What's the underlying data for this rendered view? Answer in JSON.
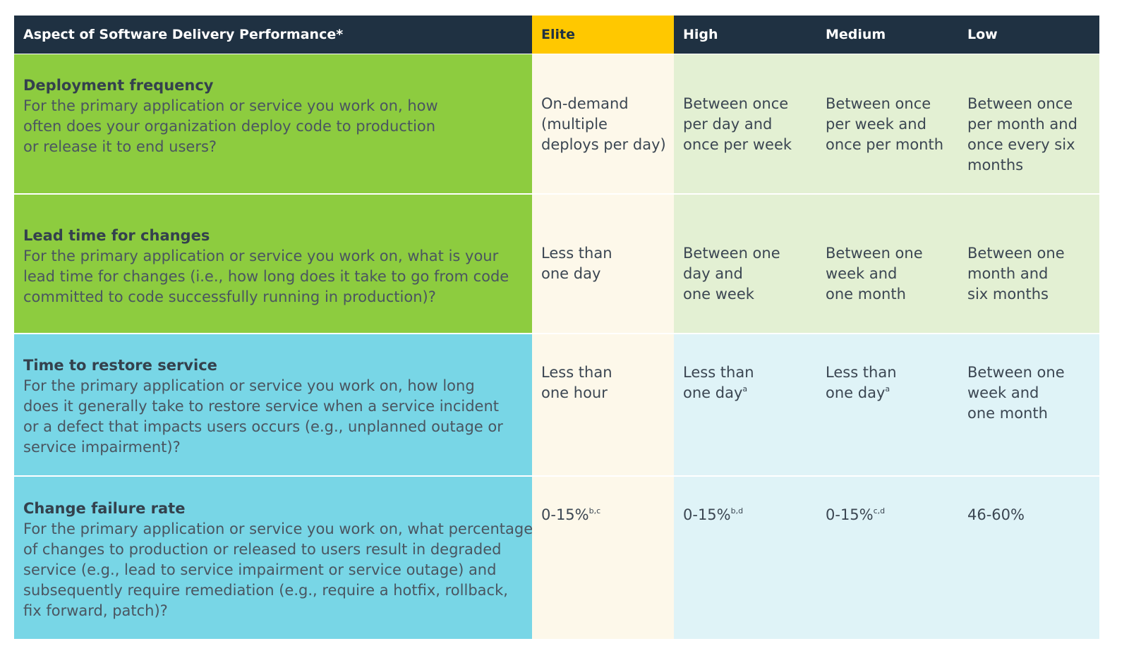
{
  "table": {
    "header": [
      "Aspect of Software Delivery Performance*",
      "Elite",
      "High",
      "Medium",
      "Low"
    ],
    "rows": [
      {
        "title": "Deployment frequency",
        "description": [
          "For the primary application or service you work on, how",
          "often does your organization deploy code to production",
          "or release it to end users?"
        ],
        "cells": [
          {
            "lines": [
              "On-demand",
              "(multiple",
              "deploys per day)"
            ]
          },
          {
            "lines": [
              "Between once",
              "per day and",
              "once per week"
            ]
          },
          {
            "lines": [
              "Between once",
              "per week and",
              "once per month"
            ]
          },
          {
            "lines": [
              "Between once",
              "per month and",
              "once every six",
              "months"
            ]
          }
        ]
      },
      {
        "title": "Lead time for changes",
        "description": [
          "For the primary application or service you work on, what is your",
          "lead time for changes (i.e., how long does it take to go from code",
          "committed to code successfully running in production)?"
        ],
        "cells": [
          {
            "lines": [
              "Less than",
              "one day"
            ]
          },
          {
            "lines": [
              "Between one",
              "day and",
              "one week"
            ]
          },
          {
            "lines": [
              "Between one",
              "week and",
              "one month"
            ]
          },
          {
            "lines": [
              "Between one",
              "month and",
              "six months"
            ]
          }
        ]
      },
      {
        "title": "Time to restore service",
        "description": [
          "For the primary application or service you work on, how long",
          "does it generally take to restore service when a service incident",
          "or a defect that impacts users occurs (e.g., unplanned outage or",
          "service impairment)?"
        ],
        "cells": [
          {
            "lines": [
              "Less than",
              "one hour"
            ]
          },
          {
            "lines": [
              "Less than",
              "one day"
            ],
            "sup": "a"
          },
          {
            "lines": [
              "Less than",
              "one day"
            ],
            "sup": "a"
          },
          {
            "lines": [
              "Between one",
              "week and",
              "one month"
            ]
          }
        ]
      },
      {
        "title": "Change failure rate",
        "description": [
          "For the primary application or service you work on, what percentage",
          "of changes to production or released to users result in degraded",
          "service (e.g., lead to service impairment or service outage) and",
          "subsequently require remediation (e.g., require a hotfix, rollback,",
          "fix forward, patch)?"
        ],
        "cells": [
          {
            "lines": [
              "0-15%"
            ],
            "sup": "b,c"
          },
          {
            "lines": [
              "0-15%"
            ],
            "sup": "b,d"
          },
          {
            "lines": [
              "0-15%"
            ],
            "sup": "c,d"
          },
          {
            "lines": [
              "46-60%"
            ]
          }
        ]
      }
    ]
  }
}
